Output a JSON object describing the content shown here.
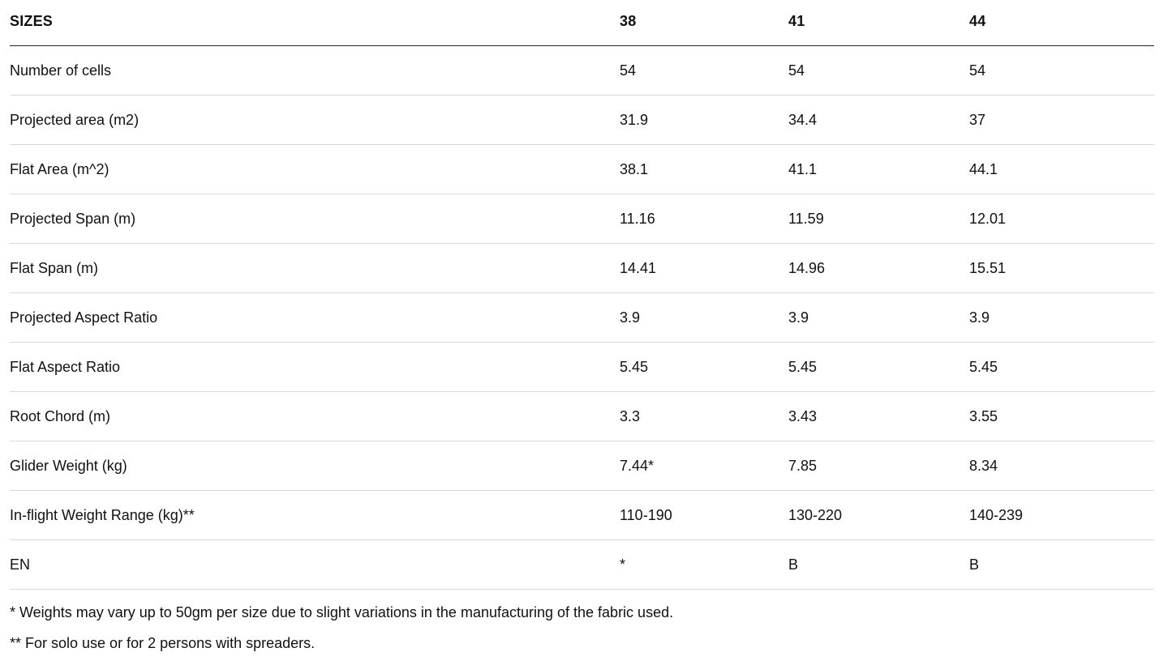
{
  "table": {
    "headers": [
      "SIZES",
      "38",
      "41",
      "44"
    ],
    "rows": [
      [
        "Number of cells",
        "54",
        "54",
        "54"
      ],
      [
        "Projected area (m2)",
        "31.9",
        "34.4",
        "37"
      ],
      [
        "Flat Area (m^2)",
        "38.1",
        "41.1",
        "44.1"
      ],
      [
        "Projected Span (m)",
        "11.16",
        "11.59",
        "12.01"
      ],
      [
        "Flat Span (m)",
        "14.41",
        "14.96",
        "15.51"
      ],
      [
        "Projected Aspect Ratio",
        "3.9",
        "3.9",
        "3.9"
      ],
      [
        "Flat Aspect Ratio",
        "5.45",
        "5.45",
        "5.45"
      ],
      [
        "Root Chord (m)",
        "3.3",
        "3.43",
        "3.55"
      ],
      [
        "Glider Weight (kg)",
        "7.44*",
        "7.85",
        "8.34"
      ],
      [
        "In-flight Weight Range (kg)**",
        "110-190",
        "130-220",
        "140-239"
      ],
      [
        "EN",
        "*",
        "B",
        "B"
      ]
    ]
  },
  "footnotes": [
    "* Weights may vary up to 50gm per size due to slight variations in the manufacturing of the fabric used.",
    "** For solo use or for 2 persons with spreaders."
  ]
}
